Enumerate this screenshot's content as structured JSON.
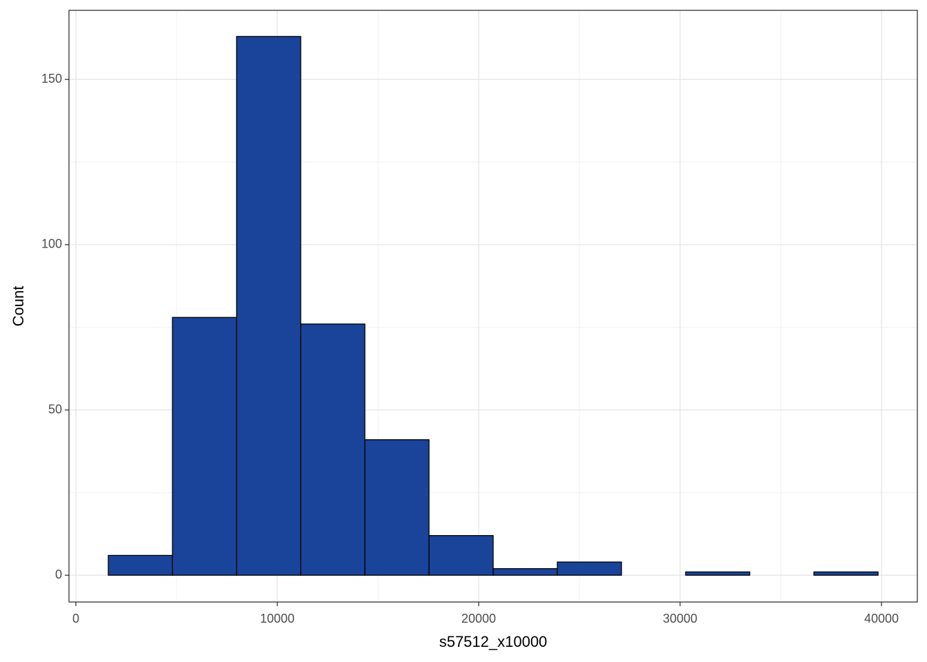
{
  "chart_data": {
    "type": "histogram",
    "x_label": "s57512_x10000",
    "y_label": "Count",
    "bins": [
      1610,
      4795,
      7980,
      11165,
      14350,
      17535,
      20720,
      23905,
      27090,
      30275,
      33460,
      36645,
      39830
    ],
    "counts": [
      6,
      78,
      163,
      76,
      41,
      12,
      2,
      4,
      0,
      1,
      0,
      1
    ],
    "color": "#1a4499",
    "edge_color": "#000000",
    "xlim": [
      -342,
      41780
    ],
    "ylim": [
      -8.1,
      170.9
    ],
    "xticks": [
      0,
      10000,
      20000,
      30000,
      40000
    ],
    "yticks": [
      0,
      50,
      100,
      150
    ],
    "xminorticks": [
      5000,
      15000,
      25000,
      35000
    ],
    "yminorticks": [
      25,
      75,
      125
    ],
    "grid": true
  }
}
